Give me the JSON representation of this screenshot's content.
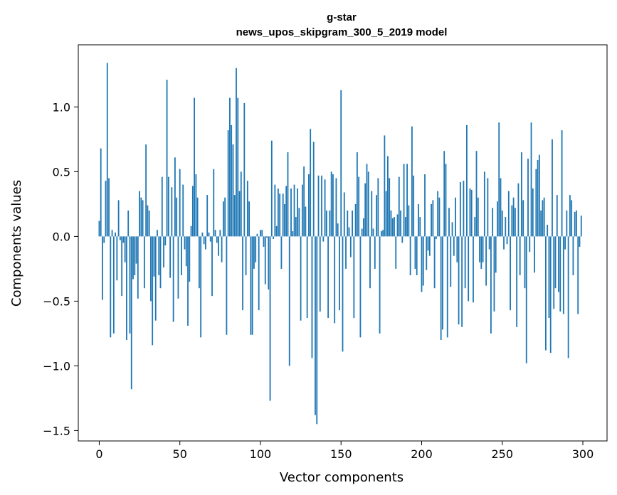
{
  "chart_data": {
    "type": "bar",
    "title": "g-star",
    "subtitle": "news_upos_skipgram_300_5_2019 model",
    "xlabel": "Vector components",
    "ylabel": "Components values",
    "xlim": [
      -13,
      315
    ],
    "ylim": [
      -1.58,
      1.48
    ],
    "xticks": [
      0,
      50,
      100,
      150,
      200,
      250,
      300
    ],
    "yticks": [
      -1.5,
      -1.0,
      -0.5,
      0.0,
      0.5,
      1.0
    ],
    "xtick_labels": [
      "0",
      "50",
      "100",
      "150",
      "200",
      "250",
      "300"
    ],
    "ytick_labels": [
      "−1.5",
      "−1.0",
      "−0.5",
      "0.0",
      "0.5",
      "1.0"
    ],
    "grid": false,
    "bar_color": "#1f77b4",
    "x": [
      0,
      1,
      2,
      3,
      4,
      5,
      6,
      7,
      8,
      9,
      10,
      11,
      12,
      13,
      14,
      15,
      16,
      17,
      18,
      19,
      20,
      21,
      22,
      23,
      24,
      25,
      26,
      27,
      28,
      29,
      30,
      31,
      32,
      33,
      34,
      35,
      36,
      37,
      38,
      39,
      40,
      41,
      42,
      43,
      44,
      45,
      46,
      47,
      48,
      49,
      50,
      51,
      52,
      53,
      54,
      55,
      56,
      57,
      58,
      59,
      60,
      61,
      62,
      63,
      64,
      65,
      66,
      67,
      68,
      69,
      70,
      71,
      72,
      73,
      74,
      75,
      76,
      77,
      78,
      79,
      80,
      81,
      82,
      83,
      84,
      85,
      86,
      87,
      88,
      89,
      90,
      91,
      92,
      93,
      94,
      95,
      96,
      97,
      98,
      99,
      100,
      101,
      102,
      103,
      104,
      105,
      106,
      107,
      108,
      109,
      110,
      111,
      112,
      113,
      114,
      115,
      116,
      117,
      118,
      119,
      120,
      121,
      122,
      123,
      124,
      125,
      126,
      127,
      128,
      129,
      130,
      131,
      132,
      133,
      134,
      135,
      136,
      137,
      138,
      139,
      140,
      141,
      142,
      143,
      144,
      145,
      146,
      147,
      148,
      149,
      150,
      151,
      152,
      153,
      154,
      155,
      156,
      157,
      158,
      159,
      160,
      161,
      162,
      163,
      164,
      165,
      166,
      167,
      168,
      169,
      170,
      171,
      172,
      173,
      174,
      175,
      176,
      177,
      178,
      179,
      180,
      181,
      182,
      183,
      184,
      185,
      186,
      187,
      188,
      189,
      190,
      191,
      192,
      193,
      194,
      195,
      196,
      197,
      198,
      199,
      200,
      201,
      202,
      203,
      204,
      205,
      206,
      207,
      208,
      209,
      210,
      211,
      212,
      213,
      214,
      215,
      216,
      217,
      218,
      219,
      220,
      221,
      222,
      223,
      224,
      225,
      226,
      227,
      228,
      229,
      230,
      231,
      232,
      233,
      234,
      235,
      236,
      237,
      238,
      239,
      240,
      241,
      242,
      243,
      244,
      245,
      246,
      247,
      248,
      249,
      250,
      251,
      252,
      253,
      254,
      255,
      256,
      257,
      258,
      259,
      260,
      261,
      262,
      263,
      264,
      265,
      266,
      267,
      268,
      269,
      270,
      271,
      272,
      273,
      274,
      275,
      276,
      277,
      278,
      279,
      280,
      281,
      282,
      283,
      284,
      285,
      286,
      287,
      288,
      289,
      290,
      291,
      292,
      293,
      294,
      295,
      296,
      297,
      298,
      299
    ],
    "values": [
      0.12,
      0.68,
      -0.49,
      -0.05,
      0.43,
      1.34,
      0.45,
      -0.78,
      0.05,
      -0.75,
      0.03,
      -0.34,
      0.28,
      -0.03,
      -0.46,
      -0.05,
      -0.2,
      -0.8,
      0.2,
      -0.75,
      -1.18,
      -0.33,
      -0.3,
      -0.21,
      -0.48,
      0.35,
      0.3,
      0.28,
      -0.4,
      0.71,
      0.24,
      0.2,
      -0.5,
      -0.84,
      -0.31,
      -0.65,
      0.05,
      -0.3,
      -0.4,
      0.46,
      -0.24,
      -0.07,
      1.21,
      0.46,
      -0.32,
      0.38,
      -0.66,
      0.61,
      0.3,
      -0.48,
      0.52,
      -0.3,
      0.4,
      -0.1,
      -0.23,
      -0.69,
      -0.35,
      0.08,
      0.39,
      1.07,
      0.48,
      0.3,
      -0.4,
      -0.78,
      0.03,
      -0.06,
      -0.1,
      0.32,
      0.03,
      -0.04,
      -0.46,
      0.52,
      0.05,
      -0.05,
      -0.15,
      0.05,
      -0.2,
      0.27,
      0.3,
      -0.76,
      0.82,
      1.07,
      0.86,
      0.71,
      0.32,
      1.3,
      1.07,
      0.35,
      0.5,
      -0.57,
      1.03,
      -0.3,
      0.43,
      0.27,
      -0.76,
      -0.76,
      -0.25,
      -0.2,
      0.02,
      -0.57,
      0.05,
      0.05,
      -0.08,
      -0.37,
      -0.01,
      -0.41,
      -1.27,
      0.74,
      -0.02,
      0.4,
      0.08,
      0.37,
      0.33,
      -0.25,
      0.33,
      0.25,
      0.39,
      0.65,
      -1.0,
      0.37,
      0.04,
      0.4,
      0.15,
      0.37,
      0.22,
      -0.65,
      0.4,
      0.54,
      0.23,
      -0.63,
      0.48,
      0.83,
      -0.94,
      0.73,
      -1.38,
      -1.45,
      0.47,
      -0.58,
      0.47,
      -0.04,
      0.44,
      0.2,
      -0.63,
      0.2,
      0.5,
      0.48,
      -0.67,
      0.45,
      0.1,
      -0.57,
      1.13,
      -0.89,
      0.34,
      -0.25,
      0.2,
      0.07,
      -0.16,
      0.2,
      -0.63,
      0.25,
      0.65,
      0.46,
      -0.78,
      0.06,
      0.14,
      0.41,
      0.56,
      0.5,
      -0.4,
      0.35,
      0.06,
      -0.25,
      0.32,
      0.45,
      -0.75,
      0.04,
      0.05,
      0.78,
      0.35,
      0.62,
      0.45,
      0.2,
      0.14,
      0.15,
      -0.25,
      0.17,
      0.46,
      0.2,
      -0.05,
      0.56,
      0.15,
      0.56,
      0.24,
      -0.3,
      0.85,
      0.47,
      -0.25,
      -0.3,
      0.25,
      0.15,
      -0.43,
      -0.38,
      0.48,
      -0.26,
      -0.11,
      -0.15,
      0.25,
      0.28,
      -0.4,
      -0.02,
      0.35,
      0.3,
      -0.8,
      -0.72,
      0.66,
      0.56,
      -0.78,
      0.22,
      -0.39,
      0.11,
      -0.15,
      0.3,
      -0.2,
      -0.68,
      0.42,
      -0.7,
      0.43,
      -0.4,
      0.86,
      -0.5,
      0.37,
      0.36,
      -0.51,
      0.15,
      0.66,
      0.3,
      -0.2,
      -0.25,
      -0.2,
      0.5,
      -0.38,
      0.45,
      -0.1,
      -0.75,
      0.22,
      -0.58,
      -0.28,
      0.27,
      0.88,
      0.45,
      0.2,
      -0.1,
      0.15,
      -0.06,
      0.35,
      -0.57,
      0.24,
      0.3,
      0.22,
      -0.7,
      0.41,
      -0.3,
      0.65,
      0.28,
      -0.4,
      -0.98,
      0.6,
      -0.12,
      0.88,
      0.37,
      -0.28,
      0.52,
      0.59,
      0.63,
      0.2,
      0.28,
      0.3,
      -0.88,
      0.09,
      -0.63,
      -0.9,
      0.75,
      -0.56,
      -0.4,
      0.32,
      -0.43,
      -0.58,
      0.82,
      -0.6,
      -0.1,
      0.2,
      -0.94,
      0.32,
      0.28,
      -0.3,
      0.19,
      0.2,
      -0.6,
      -0.08,
      0.16
    ]
  }
}
